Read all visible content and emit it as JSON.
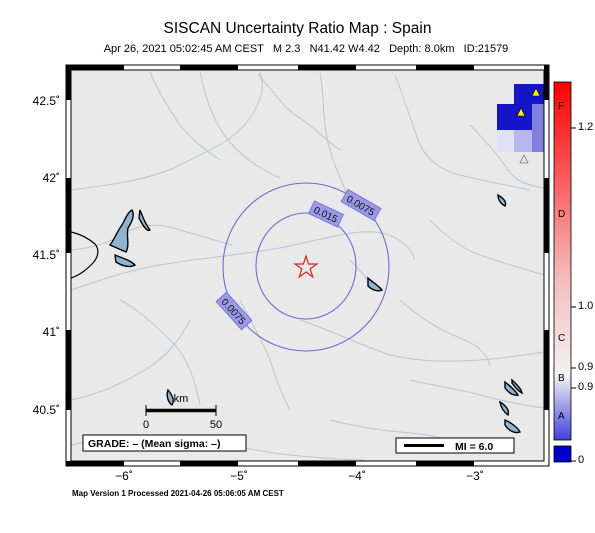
{
  "title": "SISCAN Uncertainty Ratio Map : Spain",
  "subtitle": {
    "date": "Apr 26, 2021 05:02:45 AM CEST",
    "magnitude": "M 2.3",
    "location": "N41.42 W4.42",
    "depth": "Depth: 8.0km",
    "event_id": "ID:21579"
  },
  "footer": "Map Version 1 Processed 2021-04-26 05:06:05 AM CEST",
  "lat_labels": [
    "42.5˚",
    "42˚",
    "41.5˚",
    "41˚",
    "40.5˚"
  ],
  "lon_labels": [
    "−6˚",
    "−5˚",
    "−4˚",
    "−3˚"
  ],
  "scale_bar": {
    "unit": "km",
    "start": "0",
    "end": "50"
  },
  "grade_box": "GRADE: – (Mean sigma: –)",
  "mi_box": "MI = 6.0",
  "contour_labels": [
    "0.0075",
    "0.015",
    "0.0075"
  ],
  "epicenter": {
    "lat": 41.42,
    "lon": -4.42,
    "symbol": "star-icon",
    "color": "#e0201b"
  },
  "stations": {
    "symbol": "triangle-icon",
    "color": "#f5f500"
  },
  "colorbar": {
    "values": [
      "1.2",
      "1.0",
      "0.9",
      "0.9",
      "0"
    ],
    "grades": [
      "F",
      "D",
      "C",
      "B",
      "A"
    ],
    "colors": {
      "top": "#ff0000",
      "middle": "#f2f2f2",
      "bottom": "#0000cc"
    }
  },
  "colors": {
    "land": "#e9e9e9",
    "rivers": "#b3c7d6",
    "contours": "#6b6bd6",
    "water": "#000000"
  }
}
